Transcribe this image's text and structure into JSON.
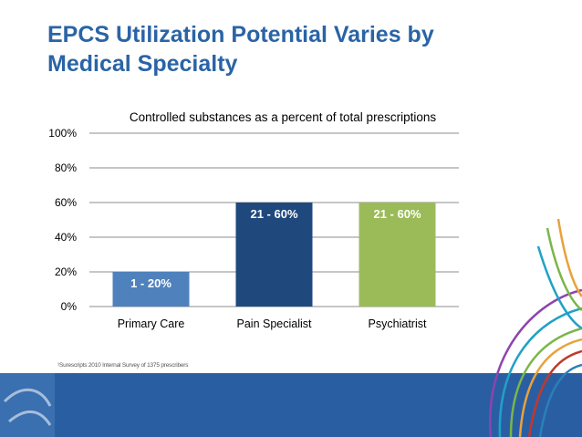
{
  "slide": {
    "title": "EPCS Utilization Potential Varies by Medical Specialty",
    "footnote": "¹Surescripts 2010 Internal Survey of 1375 prescribers"
  },
  "chart_data": {
    "type": "bar",
    "title": "Controlled substances as a percent of total prescriptions",
    "categories": [
      "Primary Care",
      "Pain Specialist",
      "Psychiatrist"
    ],
    "values": [
      20,
      60,
      60
    ],
    "data_labels": [
      "1 - 20%",
      "21 - 60%",
      "21 - 60%"
    ],
    "colors": [
      "#4f81bd",
      "#1f497d",
      "#9bbb59"
    ],
    "ylim": [
      0,
      100
    ],
    "yticks": [
      "0%",
      "20%",
      "40%",
      "60%",
      "80%",
      "100%"
    ],
    "ytick_values": [
      0,
      20,
      40,
      60,
      80,
      100
    ],
    "grid": true,
    "xlabel": "",
    "ylabel": ""
  }
}
